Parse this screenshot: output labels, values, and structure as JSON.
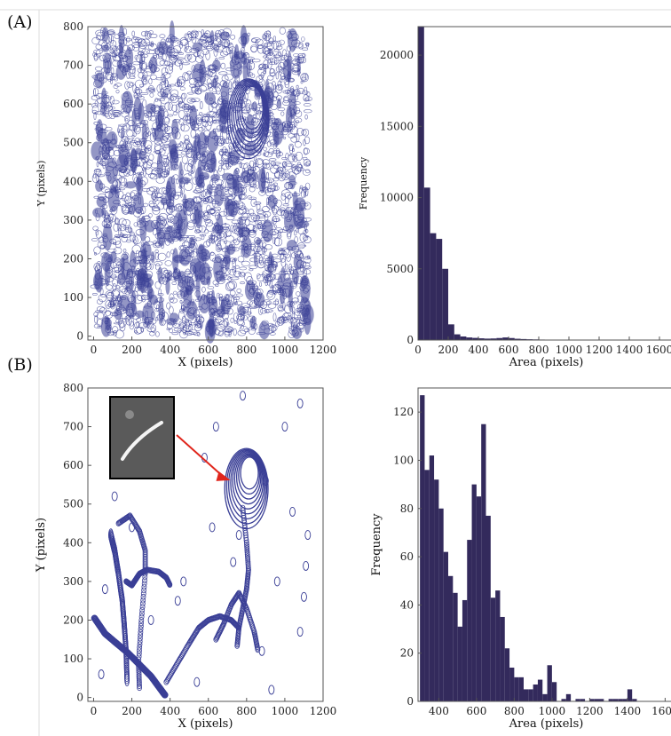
{
  "figure": {
    "panel_labels": [
      "(A)",
      "(B)"
    ],
    "colors": {
      "track_blue": "#3a3f96",
      "bar_fill": "#332a5c",
      "axis": "#555555",
      "arrow_red": "#e0261c",
      "inset_bg": "#5a5a5a"
    }
  },
  "chart_data": [
    {
      "id": "A-scatter",
      "type": "scatter",
      "title": "",
      "xlabel": "X (pixels)",
      "ylabel": "Y (pixels)",
      "xlim": [
        -30,
        1200
      ],
      "ylim": [
        -10,
        800
      ],
      "xticks": [
        "0",
        "200",
        "400",
        "600",
        "800",
        "1000",
        "1200"
      ],
      "yticks": [
        "0",
        "100",
        "200",
        "300",
        "400",
        "500",
        "600",
        "700",
        "800"
      ],
      "note_marks": "dense overlapping blue ellipse outlines covering x 0–1130, y 0–790",
      "rings": {
        "center": [
          830,
          590
        ],
        "count": 8
      }
    },
    {
      "id": "A-hist",
      "type": "bar",
      "title": "",
      "xlabel": "Area (pixels)",
      "ylabel": "Frequency",
      "xlim": [
        0,
        1700
      ],
      "ylim": [
        0,
        22000
      ],
      "xticks": [
        "0",
        "200",
        "400",
        "600",
        "800",
        "1000",
        "1200",
        "1400",
        "1600"
      ],
      "yticks": [
        "0",
        "5000",
        "10000",
        "15000",
        "20000"
      ],
      "bin_width": 40,
      "values": [
        22000,
        10700,
        7500,
        7100,
        5000,
        1100,
        400,
        250,
        180,
        150,
        120,
        100,
        110,
        140,
        180,
        140,
        90,
        70,
        55,
        45,
        35,
        30,
        25,
        20,
        15,
        12,
        10,
        8,
        6,
        5,
        4,
        3,
        3,
        2,
        2,
        2,
        1,
        1,
        1,
        1,
        1,
        1
      ]
    },
    {
      "id": "B-scatter",
      "type": "scatter",
      "title": "",
      "xlabel": "X (pixels)",
      "ylabel": "Y (pixels)",
      "xlim": [
        -30,
        1200
      ],
      "ylim": [
        -10,
        800
      ],
      "xticks": [
        "0",
        "200",
        "400",
        "600",
        "800",
        "1000",
        "1200"
      ],
      "yticks": [
        "0",
        "100",
        "200",
        "300",
        "400",
        "500",
        "600",
        "700",
        "800"
      ],
      "tracks": [
        {
          "x": [
            5,
            60,
            120,
            180,
            240,
            300,
            345,
            375
          ],
          "y": [
            205,
            165,
            140,
            115,
            85,
            55,
            25,
            5
          ]
        },
        {
          "x": [
            90,
            110,
            130,
            150,
            160,
            170,
            175
          ],
          "y": [
            420,
            380,
            320,
            250,
            190,
            120,
            40
          ]
        },
        {
          "x": [
            170,
            200,
            220,
            240,
            280,
            340,
            380,
            400
          ],
          "y": [
            300,
            290,
            305,
            320,
            330,
            325,
            310,
            290
          ]
        },
        {
          "x": [
            380,
            440,
            500,
            550,
            600,
            660,
            720,
            760
          ],
          "y": [
            40,
            90,
            140,
            180,
            200,
            210,
            200,
            180
          ]
        },
        {
          "x": [
            780,
            800,
            810,
            800,
            780,
            760,
            750
          ],
          "y": [
            490,
            400,
            330,
            280,
            230,
            180,
            130
          ]
        },
        {
          "x": [
            640,
            680,
            720,
            760,
            800,
            840,
            860
          ],
          "y": [
            150,
            190,
            240,
            270,
            230,
            170,
            120
          ]
        },
        {
          "x": [
            130,
            190,
            240,
            270,
            270,
            250,
            235,
            240
          ],
          "y": [
            450,
            470,
            430,
            380,
            320,
            200,
            90,
            20
          ]
        }
      ],
      "rings": {
        "center": [
          815,
          580
        ],
        "count": 9
      },
      "small_ellipses": [
        {
          "x": 110,
          "y": 520
        },
        {
          "x": 200,
          "y": 440
        },
        {
          "x": 440,
          "y": 250
        },
        {
          "x": 580,
          "y": 620
        },
        {
          "x": 620,
          "y": 440
        },
        {
          "x": 730,
          "y": 350
        },
        {
          "x": 760,
          "y": 420
        },
        {
          "x": 900,
          "y": 560
        },
        {
          "x": 960,
          "y": 300
        },
        {
          "x": 1040,
          "y": 480
        },
        {
          "x": 1080,
          "y": 170
        },
        {
          "x": 1100,
          "y": 260
        },
        {
          "x": 1110,
          "y": 340
        },
        {
          "x": 1120,
          "y": 420
        },
        {
          "x": 930,
          "y": 20
        },
        {
          "x": 880,
          "y": 120
        },
        {
          "x": 540,
          "y": 40
        },
        {
          "x": 470,
          "y": 300
        },
        {
          "x": 1000,
          "y": 700
        },
        {
          "x": 1080,
          "y": 760
        },
        {
          "x": 780,
          "y": 780
        },
        {
          "x": 640,
          "y": 700
        },
        {
          "x": 60,
          "y": 280
        },
        {
          "x": 40,
          "y": 60
        },
        {
          "x": 300,
          "y": 200
        }
      ],
      "inset": {
        "description": "grayscale photo of a short curved bright streak",
        "points_to": [
          780,
          580
        ]
      }
    },
    {
      "id": "B-hist",
      "type": "bar",
      "title": "",
      "xlabel": "Area (pixels)",
      "ylabel": "Frequency",
      "xlim": [
        290,
        1650
      ],
      "ylim": [
        0,
        130
      ],
      "xticks": [
        "400",
        "600",
        "800",
        "1000",
        "1200",
        "1400",
        "1600"
      ],
      "yticks": [
        "0",
        "20",
        "40",
        "60",
        "80",
        "100",
        "120"
      ],
      "bin_start": 300,
      "bin_width": 25,
      "values": [
        127,
        96,
        102,
        92,
        80,
        62,
        52,
        45,
        31,
        42,
        67,
        90,
        85,
        115,
        77,
        43,
        46,
        35,
        22,
        14,
        10,
        10,
        5,
        5,
        7,
        9,
        3,
        15,
        8,
        0,
        1,
        3,
        0,
        1,
        1,
        0,
        1,
        1,
        1,
        0,
        1,
        1,
        1,
        1,
        5,
        1
      ]
    }
  ]
}
